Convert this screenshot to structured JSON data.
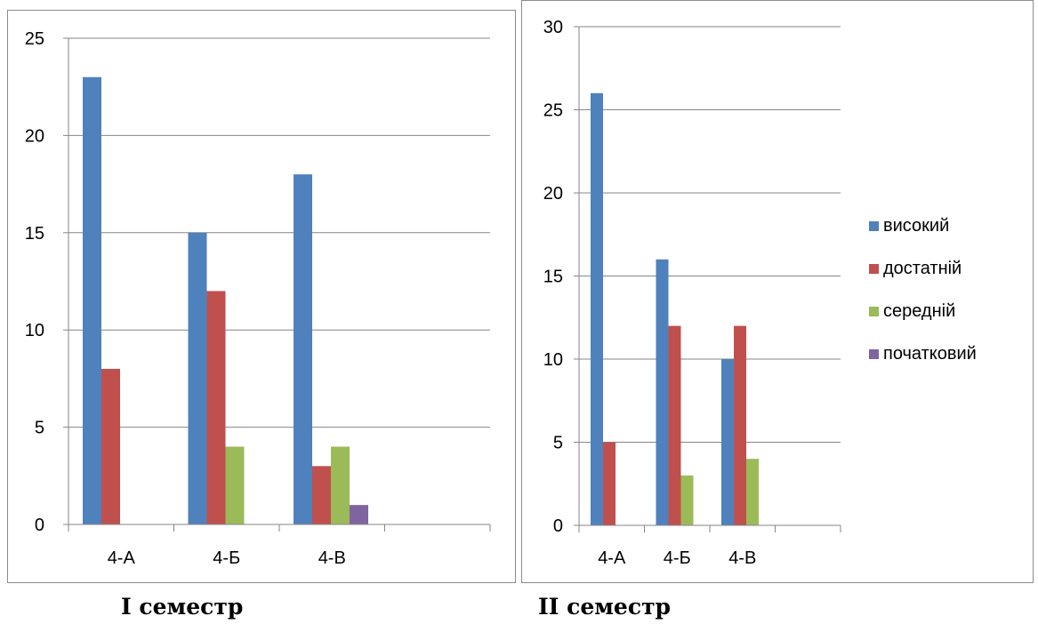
{
  "chart_data": [
    {
      "type": "bar",
      "categories": [
        "4-А",
        "4-Б",
        "4-В",
        ""
      ],
      "series": [
        {
          "name": "високий",
          "values": [
            23,
            15,
            18,
            null
          ]
        },
        {
          "name": "достатній",
          "values": [
            8,
            12,
            3,
            null
          ]
        },
        {
          "name": "середній",
          "values": [
            0,
            4,
            4,
            null
          ]
        },
        {
          "name": "початковий",
          "values": [
            0,
            0,
            1,
            null
          ]
        }
      ],
      "ylim": [
        0,
        25
      ],
      "yticks": [
        "0",
        "5",
        "10",
        "15",
        "20",
        "25"
      ],
      "grid": true,
      "caption": "I семестр"
    },
    {
      "type": "bar",
      "categories": [
        "4-А",
        "4-Б",
        "4-В",
        ""
      ],
      "series": [
        {
          "name": "високий",
          "values": [
            26,
            16,
            10,
            null
          ]
        },
        {
          "name": "достатній",
          "values": [
            5,
            12,
            12,
            null
          ]
        },
        {
          "name": "середній",
          "values": [
            0,
            3,
            4,
            null
          ]
        },
        {
          "name": "початковий",
          "values": [
            0,
            0,
            0,
            null
          ]
        }
      ],
      "ylim": [
        0,
        30
      ],
      "yticks": [
        "0",
        "5",
        "10",
        "15",
        "20",
        "25",
        "30"
      ],
      "grid": true,
      "caption": "II семестр",
      "legend_position": "right"
    }
  ],
  "colors": {
    "високий": "#4f81bd",
    "достатній": "#c0504d",
    "середній": "#9bbb59",
    "початковий": "#8064a2",
    "grid": "#868686",
    "border": "#8c8c8c"
  },
  "legend": [
    {
      "label": "високий",
      "color": "#4f81bd"
    },
    {
      "label": "достатній",
      "color": "#c0504d"
    },
    {
      "label": "середній",
      "color": "#9bbb59"
    },
    {
      "label": "початковий",
      "color": "#8064a2"
    }
  ]
}
